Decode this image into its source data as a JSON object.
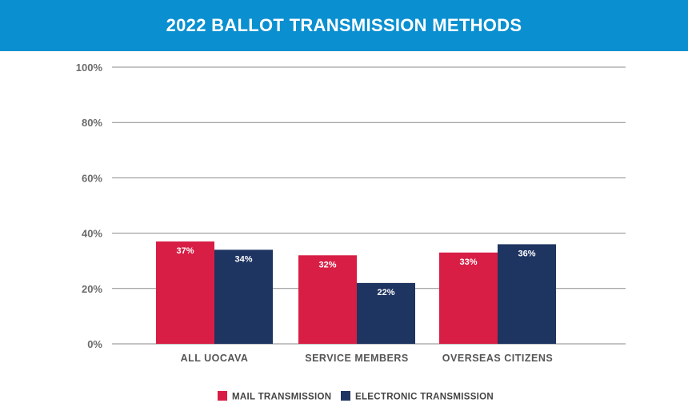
{
  "colors": {
    "banner": "#0a8fd0",
    "mail": "#d81e45",
    "electronic": "#1e3461",
    "grid": "#8a8a8a"
  },
  "chart_data": {
    "type": "bar",
    "title": "2022 BALLOT TRANSMISSION METHODS",
    "categories": [
      "ALL UOCAVA",
      "SERVICE MEMBERS",
      "OVERSEAS CITIZENS"
    ],
    "series": [
      {
        "name": "MAIL TRANSMISSION",
        "values": [
          37,
          32,
          33
        ],
        "labels": [
          "37%",
          "32%",
          "33%"
        ]
      },
      {
        "name": "ELECTRONIC TRANSMISSION",
        "values": [
          34,
          22,
          36
        ],
        "labels": [
          "34%",
          "22%",
          "36%"
        ]
      }
    ],
    "ylim": [
      0,
      100
    ],
    "yticks": [
      0,
      20,
      40,
      60,
      80,
      100
    ],
    "ytick_labels": [
      "0%",
      "20%",
      "40%",
      "60%",
      "80%",
      "100%"
    ],
    "grid": true,
    "legend_position": "bottom-center"
  }
}
